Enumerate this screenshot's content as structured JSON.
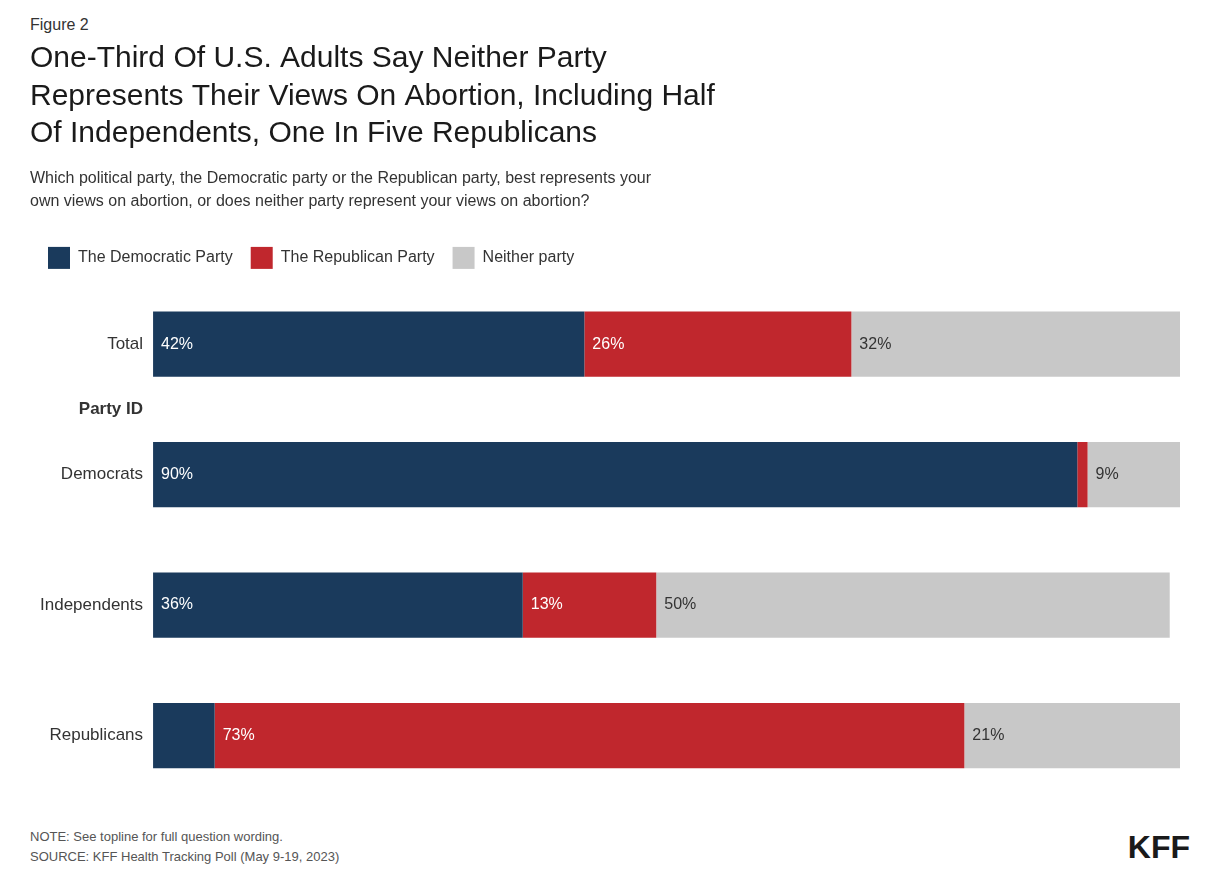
{
  "chart_data": {
    "type": "bar",
    "orientation": "horizontal",
    "stacked": true,
    "title": "One-Third Of U.S. Adults Say Neither Party\nRepresents Their Views On Abortion, Including Half\nOf Independents, One In Five Republicans",
    "subtitle": "Which political party, the Democratic party or the Republican party, best represents your\nown views on abortion, or does neither party represent your views on abortion?",
    "annotations": [
      "Figure 2",
      "Party ID",
      "NOTE: See topline for full question wording.\nSOURCE: KFF Health Tracking Poll (May 9-19, 2023)",
      "KFF"
    ],
    "categories": [
      "Total",
      "Democrats",
      "Independents",
      "Republicans"
    ],
    "series": [
      {
        "name": "The Democratic Party",
        "color": "#1a3a5c",
        "values": [
          42,
          90,
          36,
          6
        ],
        "value_labels": [
          "42%",
          "90%",
          "36%",
          null
        ]
      },
      {
        "name": "The Republican Party",
        "color": "#c0272d",
        "values": [
          26,
          1,
          13,
          73
        ],
        "value_labels": [
          "26%",
          null,
          "13%",
          "73%"
        ]
      },
      {
        "name": "Neither party",
        "color": "#c8c8c8",
        "values": [
          32,
          9,
          50,
          21
        ],
        "value_labels": [
          "32%",
          "9%",
          "50%",
          "21%"
        ]
      }
    ],
    "xlim": [
      0,
      100
    ],
    "data_labels": true,
    "tick_labels": "y",
    "grid": false,
    "legend": "top"
  }
}
